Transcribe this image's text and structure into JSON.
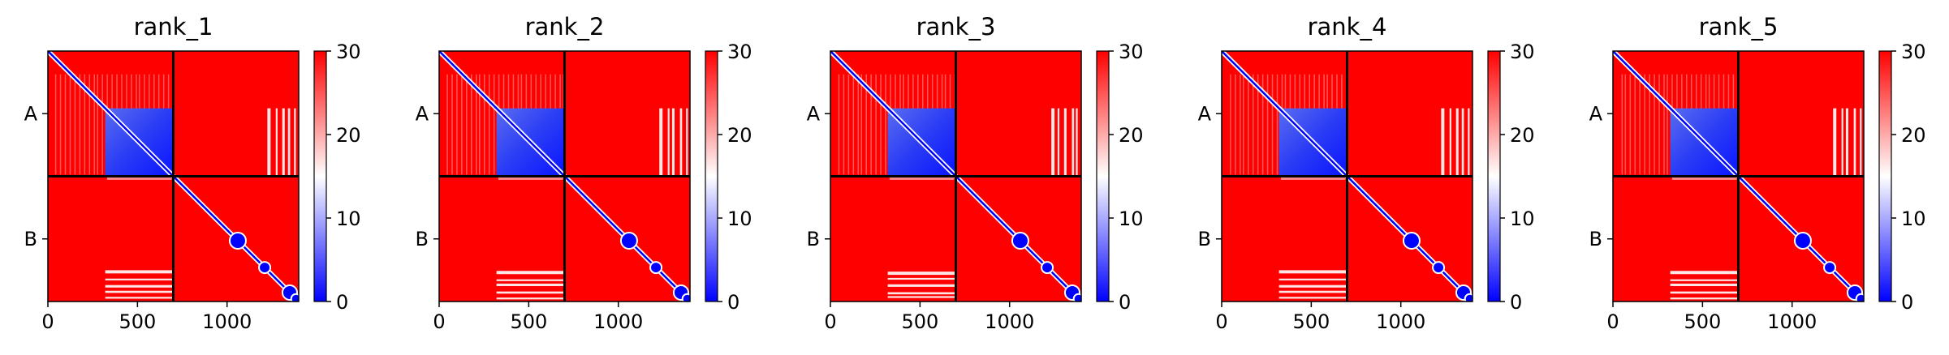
{
  "chart_data": {
    "type": "heatmap",
    "colormap": "bwr",
    "color_min_color": "#0000ff",
    "color_mid_color": "#ffffff",
    "color_max_color": "#ff0000",
    "xlim": [
      0,
      1400
    ],
    "x_ticks": [
      "0",
      "500",
      "1000"
    ],
    "x_tick_values": [
      0,
      500,
      1000
    ],
    "y_tick_labels": [
      "A",
      "B"
    ],
    "chain_break": 700,
    "clim": [
      0,
      30
    ],
    "colorbar_ticks": [
      "0",
      "10",
      "20",
      "30"
    ],
    "colorbar_tick_values": [
      0,
      10,
      20,
      30
    ],
    "panels": [
      {
        "title": "rank_1"
      },
      {
        "title": "rank_2"
      },
      {
        "title": "rank_3"
      },
      {
        "title": "rank_4"
      },
      {
        "title": "rank_5"
      }
    ]
  }
}
